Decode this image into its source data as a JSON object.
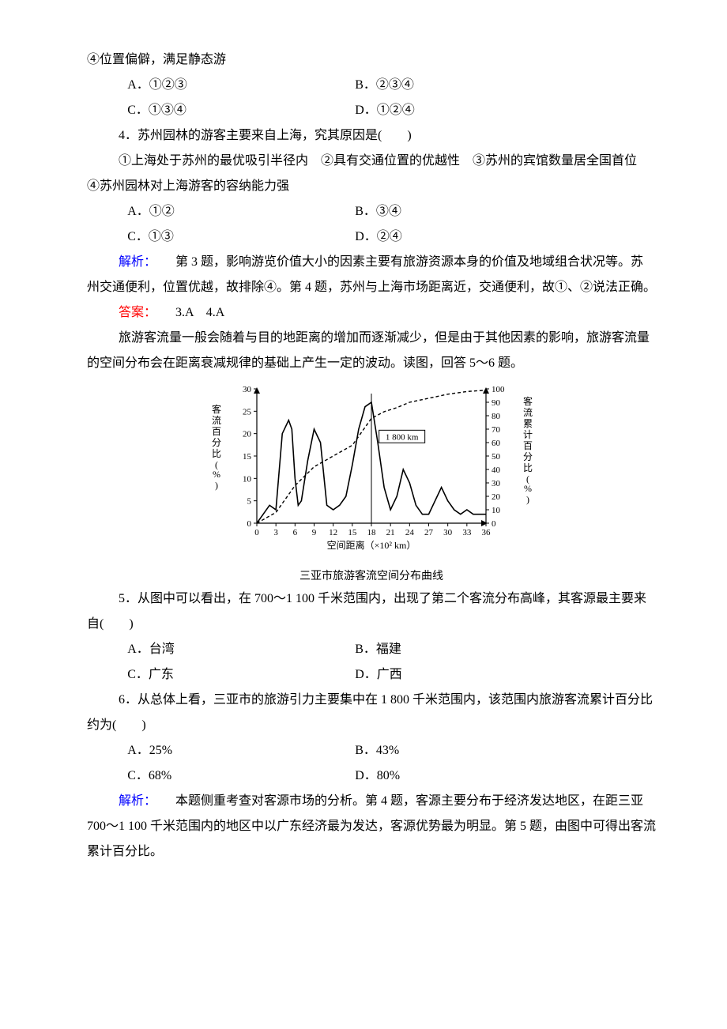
{
  "line4": "④位置偏僻，满足静态游",
  "q3_opts": {
    "A": "A．①②③",
    "B": "B．②③④",
    "C": "C．①③④",
    "D": "D．①②④"
  },
  "q4_stem": "4．苏州园林的游客主要来自上海，究其原因是(　　)",
  "q4_items": "①上海处于苏州的最优吸引半径内　②具有交通位置的优越性　③苏州的宾馆数量居全国首位　④苏州园林对上海游客的容纳能力强",
  "q4_opts": {
    "A": "A．①②",
    "B": "B．③④",
    "C": "C．①③",
    "D": "D．②④"
  },
  "jiexi_label": "解析：",
  "jiexi_34": "第 3 题，影响游览价值大小的因素主要有旅游资源本身的价值及地域组合状况等。苏州交通便利，位置优越，故排除④。第 4 题，苏州与上海市场距离近，交通便利，故①、②说法正确。",
  "daan_label": "答案：",
  "daan_34": "3.A　4.A",
  "intro56": "旅游客流量一般会随着与目的地距离的增加而逐渐减少，但是由于其他因素的影响，旅游客流量的空间分布会在距离衰减规律的基础上产生一定的波动。读图，回答 5～6 题。",
  "chart": {
    "type": "dual-axis-line",
    "background_color": "#ffffff",
    "y_left_label": "客流百分比(%)",
    "y_right_label": "客流累计百分比(%)",
    "x_label": "空间距离（×10² km）",
    "caption": "三亚市旅游客流空间分布曲线",
    "xlim": [
      0,
      36
    ],
    "xtick_step": 3,
    "xticks": [
      0,
      3,
      6,
      9,
      12,
      15,
      18,
      21,
      24,
      27,
      30,
      33,
      36
    ],
    "ylim_left": [
      0,
      30
    ],
    "ytick_left_step": 5,
    "yticks_left": [
      0,
      5,
      10,
      15,
      20,
      25,
      30
    ],
    "ylim_right": [
      0,
      100
    ],
    "ytick_right_step": 10,
    "yticks_right": [
      0,
      10,
      20,
      30,
      40,
      50,
      60,
      70,
      80,
      90,
      100
    ],
    "annotation": {
      "text": "1 800 km",
      "x": 18,
      "y_left_pos": 20
    },
    "series_solid": {
      "name": "客流百分比",
      "color": "#000000",
      "stroke_width": 1.6,
      "dash": "none",
      "points": [
        [
          0,
          0
        ],
        [
          1,
          2
        ],
        [
          2,
          4
        ],
        [
          3,
          3
        ],
        [
          4,
          20
        ],
        [
          5,
          23
        ],
        [
          5.5,
          21
        ],
        [
          6,
          10
        ],
        [
          6.5,
          4
        ],
        [
          7,
          5
        ],
        [
          8,
          14
        ],
        [
          9,
          21
        ],
        [
          10,
          18
        ],
        [
          11,
          4
        ],
        [
          12,
          3
        ],
        [
          13,
          4
        ],
        [
          14,
          6
        ],
        [
          15,
          13
        ],
        [
          16,
          21
        ],
        [
          17,
          26
        ],
        [
          18,
          27
        ],
        [
          19,
          18
        ],
        [
          20,
          8
        ],
        [
          21,
          3
        ],
        [
          22,
          6
        ],
        [
          23,
          12
        ],
        [
          24,
          9
        ],
        [
          25,
          4
        ],
        [
          26,
          2
        ],
        [
          27,
          2
        ],
        [
          28,
          5
        ],
        [
          29,
          8
        ],
        [
          30,
          5
        ],
        [
          31,
          3
        ],
        [
          32,
          2
        ],
        [
          33,
          3
        ],
        [
          34,
          2
        ],
        [
          35,
          2
        ],
        [
          36,
          2
        ]
      ]
    },
    "series_dashed": {
      "name": "客流累计百分比",
      "color": "#000000",
      "stroke_width": 1.4,
      "dash": "4,3",
      "points": [
        [
          0,
          0
        ],
        [
          3,
          8
        ],
        [
          6,
          28
        ],
        [
          9,
          42
        ],
        [
          12,
          50
        ],
        [
          15,
          58
        ],
        [
          18,
          78
        ],
        [
          20,
          83
        ],
        [
          22,
          86
        ],
        [
          24,
          90
        ],
        [
          27,
          93
        ],
        [
          30,
          96
        ],
        [
          33,
          98
        ],
        [
          36,
          99
        ]
      ]
    },
    "label_fontsize": 12,
    "tick_fontsize": 11,
    "caption_fontsize": 14
  },
  "q5_stem": "5．从图中可以看出，在 700～1 100 千米范围内，出现了第二个客流分布高峰，其客源最主要来自(　　)",
  "q5_opts": {
    "A": "A．台湾",
    "B": "B．福建",
    "C": "C．广东",
    "D": "D．广西"
  },
  "q6_stem": "6．从总体上看，三亚市的旅游引力主要集中在 1 800 千米范围内，该范围内旅游客流累计百分比约为(　　)",
  "q6_opts": {
    "A": "A．25%",
    "B": "B．43%",
    "C": "C．68%",
    "D": "D．80%"
  },
  "jiexi_56": "本题侧重考查对客源市场的分析。第 4 题，客源主要分布于经济发达地区，在距三亚 700～1 100 千米范围内的地区中以广东经济最为发达，客源优势最为明显。第 5 题，由图中可得出客流累计百分比。"
}
